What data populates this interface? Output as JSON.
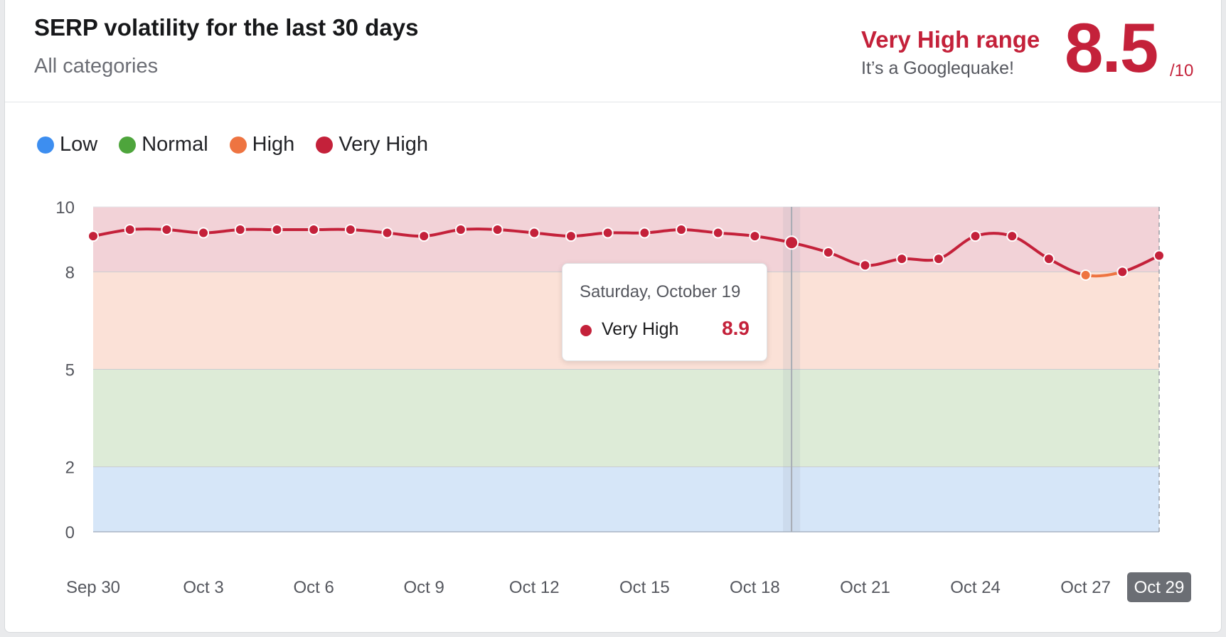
{
  "header": {
    "title": "SERP volatility for the last 30 days",
    "subtitle": "All categories",
    "range_label": "Very High range",
    "range_desc": "It’s a Googlequake!",
    "score": "8.5",
    "score_max": "/10"
  },
  "legend": [
    {
      "label": "Low",
      "color": "#3d8ef0"
    },
    {
      "label": "Normal",
      "color": "#4ea53c"
    },
    {
      "label": "High",
      "color": "#ee7441"
    },
    {
      "label": "Very High",
      "color": "#c4213a"
    }
  ],
  "tooltip": {
    "date": "Saturday, October 19",
    "series": "Very High",
    "value": "8.9",
    "color": "#c4213a"
  },
  "chart_data": {
    "type": "line",
    "title": "SERP volatility for the last 30 days",
    "xlabel": "",
    "ylabel": "",
    "ylim": [
      0,
      10
    ],
    "y_ticks": [
      0,
      2,
      5,
      8,
      10
    ],
    "x_tick_labels": [
      "Sep 30",
      "Oct 3",
      "Oct 6",
      "Oct 9",
      "Oct 12",
      "Oct 15",
      "Oct 18",
      "Oct 21",
      "Oct 24",
      "Oct 27",
      "Oct 29"
    ],
    "highlighted_x_label": "Oct 29",
    "highlighted_date": "Oct 19",
    "bands": [
      {
        "name": "Low",
        "from": 0,
        "to": 2,
        "color": "#d6e6f8"
      },
      {
        "name": "Normal",
        "from": 2,
        "to": 5,
        "color": "#ddebd7"
      },
      {
        "name": "High",
        "from": 5,
        "to": 8,
        "color": "#fbe1d7"
      },
      {
        "name": "Very High",
        "from": 8,
        "to": 10,
        "color": "#f2d2d7"
      }
    ],
    "x": [
      "Sep 30",
      "Oct 1",
      "Oct 2",
      "Oct 3",
      "Oct 4",
      "Oct 5",
      "Oct 6",
      "Oct 7",
      "Oct 8",
      "Oct 9",
      "Oct 10",
      "Oct 11",
      "Oct 12",
      "Oct 13",
      "Oct 14",
      "Oct 15",
      "Oct 16",
      "Oct 17",
      "Oct 18",
      "Oct 19",
      "Oct 20",
      "Oct 21",
      "Oct 22",
      "Oct 23",
      "Oct 24",
      "Oct 25",
      "Oct 26",
      "Oct 27",
      "Oct 28",
      "Oct 29"
    ],
    "series": [
      {
        "name": "Very High",
        "values": [
          9.1,
          9.3,
          9.3,
          9.2,
          9.3,
          9.3,
          9.3,
          9.3,
          9.2,
          9.1,
          9.3,
          9.3,
          9.2,
          9.1,
          9.2,
          9.2,
          9.3,
          9.2,
          9.1,
          8.9,
          8.6,
          8.2,
          8.4,
          8.4,
          9.1,
          9.1,
          8.4,
          7.9,
          8.0,
          8.5
        ]
      }
    ]
  }
}
